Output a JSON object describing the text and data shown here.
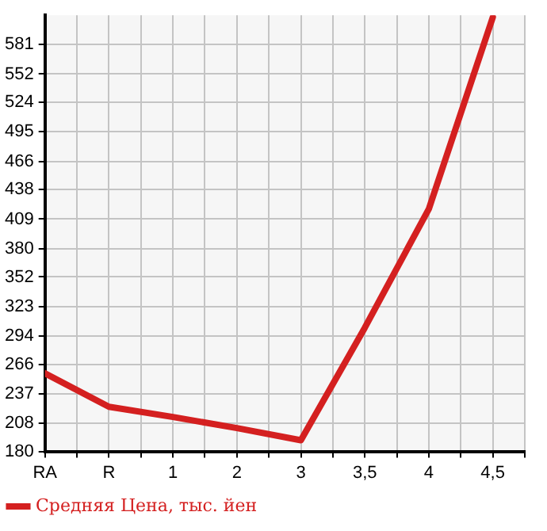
{
  "chart_data": {
    "type": "line",
    "categories": [
      "RA",
      "R",
      "1",
      "2",
      "3",
      "3,5",
      "4",
      "4,5"
    ],
    "series": [
      {
        "name": "Средняя Цена, тыс. йен",
        "color": "#d42020",
        "values": [
          257,
          224,
          214,
          203,
          191,
          302,
          419,
          608
        ]
      }
    ],
    "ylim": [
      180,
      610
    ],
    "yticks": [
      180,
      208,
      237,
      266,
      294,
      323,
      352,
      380,
      409,
      438,
      466,
      495,
      524,
      552,
      581
    ],
    "grid": true,
    "legend": "bottom",
    "marker": "none",
    "line_style": "solid"
  }
}
